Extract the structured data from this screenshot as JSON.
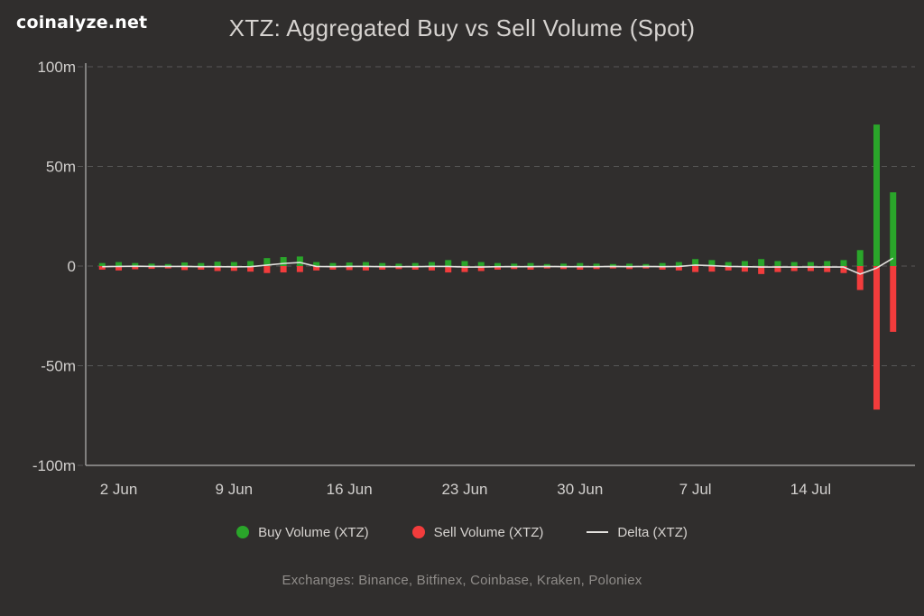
{
  "page": {
    "logo": "coinalyze.net",
    "title": "XTZ: Aggregated Buy vs Sell Volume (Spot)",
    "footer": "Exchanges: Binance, Bitfinex, Coinbase, Kraken, Poloniex"
  },
  "colors": {
    "background": "#302e2d",
    "buy": "#2aa52a",
    "sell": "#f23c3c",
    "delta": "#e3e1de",
    "grid": "#575757",
    "axis": "#9a9a9a",
    "tick_text": "#d1cfcd"
  },
  "legend": [
    {
      "label": "Buy Volume (XTZ)",
      "color": "#2aa52a",
      "swatch": "dot"
    },
    {
      "label": "Sell Volume (XTZ)",
      "color": "#f23c3c",
      "swatch": "dot"
    },
    {
      "label": "Delta (XTZ)",
      "color": "#e3e1de",
      "swatch": "line"
    }
  ],
  "chart_data": {
    "type": "bar",
    "title": "XTZ: Aggregated Buy vs Sell Volume (Spot)",
    "unit": "millions XTZ",
    "grid": "horizontal dashed",
    "legend_position": "bottom",
    "ylim": [
      -100,
      100
    ],
    "yticks": [
      {
        "v": 100,
        "label": "100m"
      },
      {
        "v": 50,
        "label": "50m"
      },
      {
        "v": 0,
        "label": "0"
      },
      {
        "v": -50,
        "label": "-50m"
      },
      {
        "v": -100,
        "label": "-100m"
      }
    ],
    "x": [
      "1 Jun",
      "2 Jun",
      "3 Jun",
      "4 Jun",
      "5 Jun",
      "6 Jun",
      "7 Jun",
      "8 Jun",
      "9 Jun",
      "10 Jun",
      "11 Jun",
      "12 Jun",
      "13 Jun",
      "14 Jun",
      "15 Jun",
      "16 Jun",
      "17 Jun",
      "18 Jun",
      "19 Jun",
      "20 Jun",
      "21 Jun",
      "22 Jun",
      "23 Jun",
      "24 Jun",
      "25 Jun",
      "26 Jun",
      "27 Jun",
      "28 Jun",
      "29 Jun",
      "30 Jun",
      "1 Jul",
      "2 Jul",
      "3 Jul",
      "4 Jul",
      "5 Jul",
      "6 Jul",
      "7 Jul",
      "8 Jul",
      "9 Jul",
      "10 Jul",
      "11 Jul",
      "12 Jul",
      "13 Jul",
      "14 Jul",
      "15 Jul",
      "16 Jul",
      "17 Jul",
      "18 Jul",
      "19 Jul"
    ],
    "xticks": [
      {
        "label": "2 Jun",
        "index": 1
      },
      {
        "label": "9 Jun",
        "index": 8
      },
      {
        "label": "16 Jun",
        "index": 15
      },
      {
        "label": "23 Jun",
        "index": 22
      },
      {
        "label": "30 Jun",
        "index": 29
      },
      {
        "label": "7 Jul",
        "index": 36
      },
      {
        "label": "14 Jul",
        "index": 43
      }
    ],
    "series": [
      {
        "name": "Buy Volume (XTZ)",
        "color": "#2aa52a",
        "values": [
          1.5,
          2.0,
          1.5,
          1.2,
          1.0,
          1.8,
          1.5,
          2.2,
          2.0,
          2.5,
          4.0,
          4.5,
          4.8,
          2.0,
          1.5,
          1.8,
          2.0,
          1.5,
          1.2,
          1.5,
          2.0,
          3.0,
          2.5,
          2.0,
          1.5,
          1.2,
          1.5,
          1.0,
          1.2,
          1.5,
          1.2,
          1.0,
          1.2,
          1.0,
          1.5,
          2.0,
          3.5,
          3.0,
          2.0,
          2.5,
          3.5,
          2.5,
          2.0,
          2.0,
          2.5,
          3.0,
          8.0,
          71.0,
          37.0
        ]
      },
      {
        "name": "Sell Volume (XTZ)",
        "color": "#f23c3c",
        "values": [
          -1.8,
          -2.2,
          -1.6,
          -1.4,
          -1.2,
          -2.0,
          -1.8,
          -2.5,
          -2.4,
          -2.8,
          -3.5,
          -3.2,
          -3.0,
          -2.2,
          -1.8,
          -2.0,
          -2.2,
          -1.8,
          -1.5,
          -1.8,
          -2.2,
          -3.2,
          -3.0,
          -2.5,
          -1.8,
          -1.5,
          -1.8,
          -1.2,
          -1.5,
          -1.8,
          -1.5,
          -1.2,
          -1.5,
          -1.2,
          -1.8,
          -2.2,
          -3.0,
          -2.8,
          -2.2,
          -2.8,
          -4.0,
          -3.0,
          -2.5,
          -2.5,
          -3.0,
          -3.5,
          -12.0,
          -72.0,
          -33.0
        ]
      },
      {
        "name": "Delta (XTZ)",
        "color": "#e3e1de",
        "values": [
          -0.3,
          -0.2,
          -0.1,
          -0.2,
          -0.2,
          -0.2,
          -0.3,
          -0.3,
          -0.4,
          -0.3,
          0.5,
          1.3,
          1.8,
          -0.2,
          -0.3,
          -0.2,
          -0.2,
          -0.3,
          -0.3,
          -0.3,
          -0.2,
          -0.2,
          -0.5,
          -0.5,
          -0.3,
          -0.3,
          -0.3,
          -0.2,
          -0.3,
          -0.3,
          -0.3,
          -0.2,
          -0.3,
          -0.2,
          -0.3,
          -0.2,
          0.5,
          0.2,
          -0.2,
          -0.3,
          -0.5,
          -0.5,
          -0.5,
          -0.5,
          -0.5,
          -0.5,
          -4.0,
          -1.0,
          4.0
        ]
      }
    ]
  }
}
